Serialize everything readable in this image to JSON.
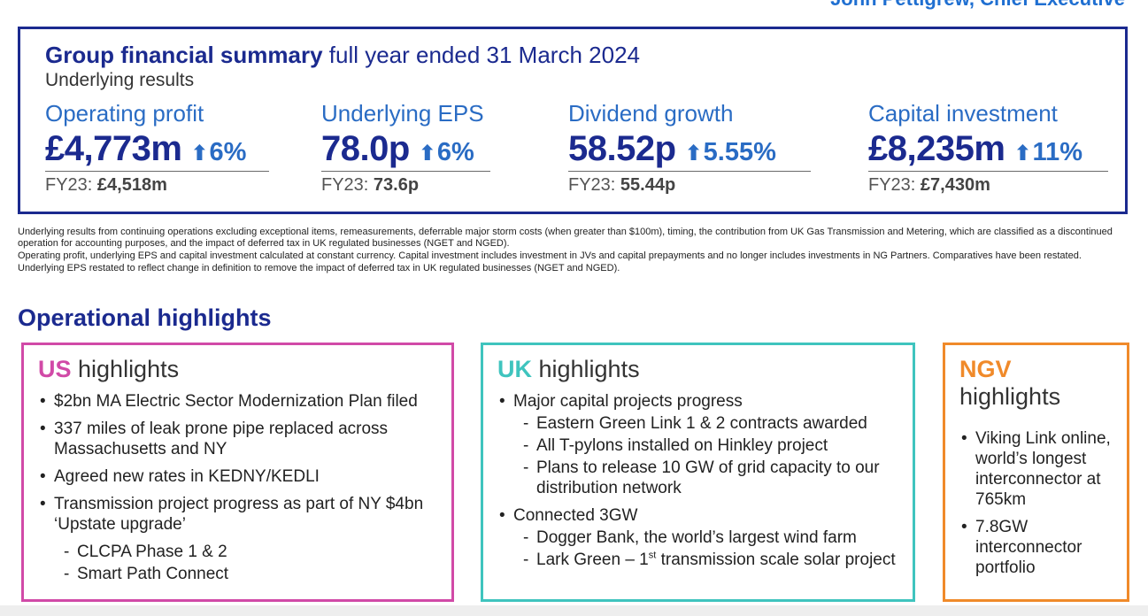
{
  "header_cut": "John Pettigrew, Chief Executive",
  "summary": {
    "title_bold": "Group financial summary",
    "title_rest": " full year ended 31 March 2024",
    "subtitle": "Underlying results",
    "metrics": [
      {
        "label": "Operating profit",
        "value": "£4,773m",
        "change": "6%",
        "prior_label": "FY23: ",
        "prior_value": "£4,518m"
      },
      {
        "label": "Underlying EPS",
        "value": "78.0p",
        "change": "6%",
        "prior_label": "FY23: ",
        "prior_value": "73.6p"
      },
      {
        "label": "Dividend growth",
        "value": "58.52p",
        "change": "5.55%",
        "prior_label": "FY23: ",
        "prior_value": "55.44p"
      },
      {
        "label": "Capital investment",
        "value": "£8,235m",
        "change": "11%",
        "prior_label": "FY23: ",
        "prior_value": "£7,430m"
      }
    ]
  },
  "notes": [
    "Underlying results from continuing operations excluding exceptional items, remeasurements, deferrable major storm costs (when greater than $100m), timing, the contribution from UK Gas Transmission and Metering, which are classified as a discontinued operation for accounting purposes, and the impact of deferred tax in UK regulated businesses (NGET and NGED).",
    "Operating profit, underlying EPS and capital investment calculated at constant currency. Capital investment includes investment in JVs and capital prepayments and no longer includes investments in NG Partners. Comparatives have been restated.",
    "Underlying EPS restated to reflect change in definition to remove the impact of deferred tax in UK regulated businesses (NGET and NGED)."
  ],
  "operational": {
    "title": "Operational highlights",
    "us": {
      "tag": "US",
      "title_rest": " highlights",
      "color": "#d14aa7",
      "items": [
        "$2bn MA Electric Sector Modernization Plan filed",
        "337 miles of leak prone pipe replaced across Massachusetts and NY",
        "Agreed new rates in KEDNY/KEDLI",
        "Transmission project progress as part of NY $4bn ‘Upstate upgrade’"
      ],
      "subitems": [
        "CLCPA Phase 1 & 2",
        "Smart Path Connect"
      ]
    },
    "uk": {
      "tag": "UK",
      "title_rest": " highlights",
      "color": "#3fc4be",
      "item1": "Major capital projects progress",
      "sub1": [
        "Eastern Green Link 1 & 2 contracts awarded",
        "All T-pylons installed on Hinkley project",
        "Plans to release 10 GW of grid capacity to our distribution network"
      ],
      "item2": "Connected 3GW",
      "sub2a": "Dogger Bank, the world’s largest wind farm",
      "sub2b_pre": "Lark Green – 1",
      "sub2b_sup": "st",
      "sub2b_post": " transmission scale solar project"
    },
    "ngv": {
      "tag": "NGV",
      "title_rest": "highlights",
      "color": "#f08a2a",
      "items": [
        "Viking Link online, world’s longest interconnector at 765km",
        "7.8GW interconnector portfolio"
      ]
    }
  }
}
